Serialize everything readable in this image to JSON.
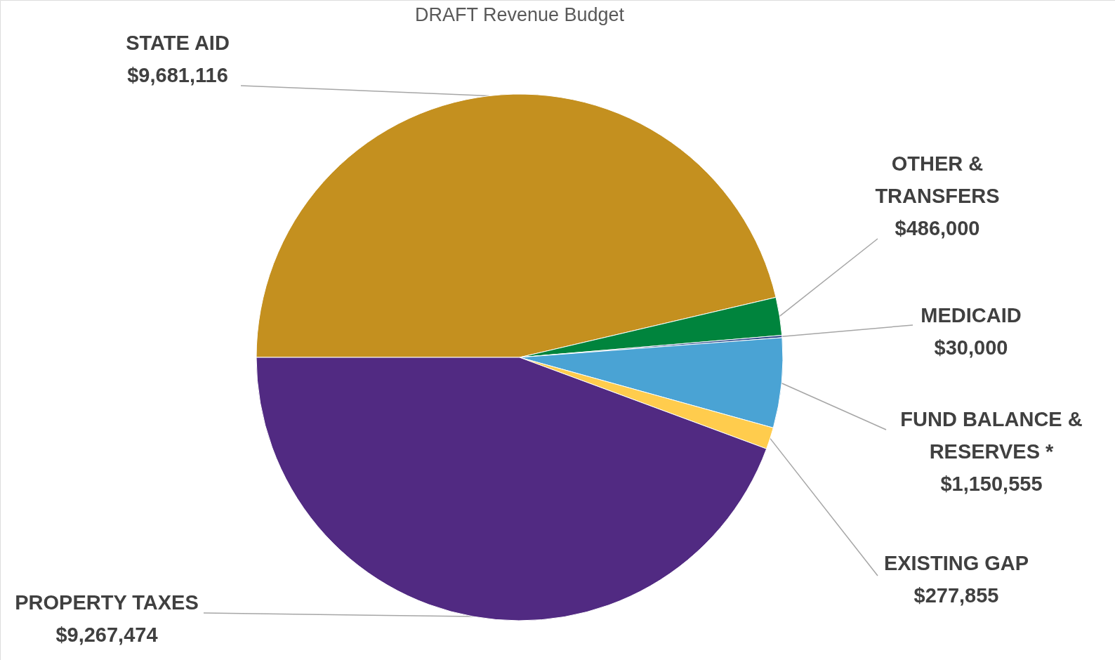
{
  "chart_data": {
    "type": "pie",
    "title": "DRAFT Revenue Budget",
    "categories": [
      "STATE AID",
      "OTHER & TRANSFERS",
      "MEDICAID",
      "FUND BALANCE & RESERVES *",
      "EXISTING GAP",
      "PROPERTY TAXES"
    ],
    "values": [
      9681116,
      486000,
      30000,
      1150555,
      277855,
      9267474
    ],
    "colors": [
      "#c4901f",
      "#00843d",
      "#2e4a8c",
      "#4aa3d4",
      "#ffcc4d",
      "#512a82"
    ],
    "value_labels": [
      "$9,681,116",
      "$486,000",
      "$30,000",
      "$1,150,555",
      "$277,855",
      "$9,267,474"
    ]
  }
}
